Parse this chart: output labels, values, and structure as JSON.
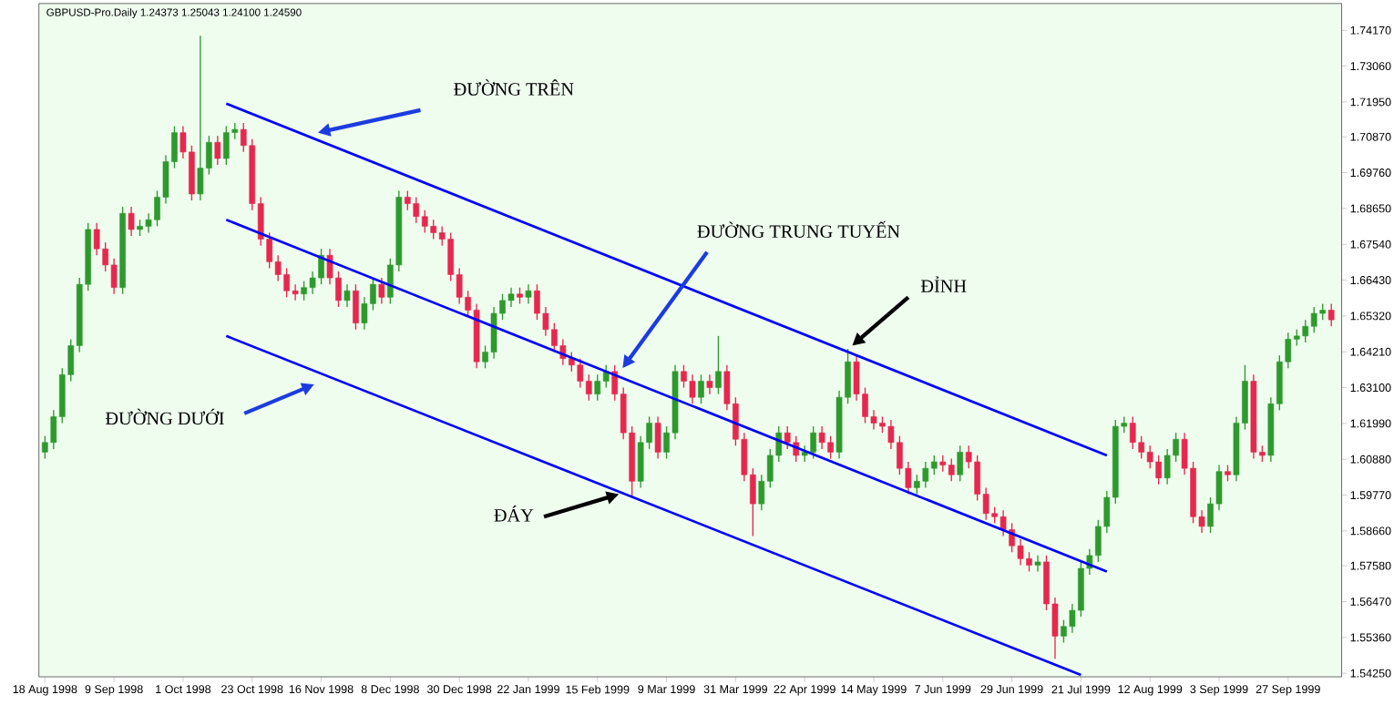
{
  "chart_data": {
    "type": "candlestick",
    "title": "GBPUSD-Pro.Daily  1.24373 1.25043 1.24100 1.24590",
    "categories": [
      "18 Aug 1998",
      null,
      null,
      null,
      null,
      null,
      null,
      null,
      "9 Sep 1998",
      null,
      null,
      null,
      null,
      null,
      null,
      null,
      "1 Oct 1998",
      null,
      null,
      null,
      null,
      null,
      null,
      null,
      "23 Oct 1998",
      null,
      null,
      null,
      null,
      null,
      null,
      null,
      "16 Nov 1998",
      null,
      null,
      null,
      null,
      null,
      null,
      null,
      "8 Dec 1998",
      null,
      null,
      null,
      null,
      null,
      null,
      null,
      "30 Dec 1998",
      null,
      null,
      null,
      null,
      null,
      null,
      null,
      "22 Jan 1999",
      null,
      null,
      null,
      null,
      null,
      null,
      null,
      "15 Feb 1999",
      null,
      null,
      null,
      null,
      null,
      null,
      null,
      "9 Mar 1999",
      null,
      null,
      null,
      null,
      null,
      null,
      null,
      "31 Mar 1999",
      null,
      null,
      null,
      null,
      null,
      null,
      null,
      "22 Apr 1999",
      null,
      null,
      null,
      null,
      null,
      null,
      null,
      "14 May 1999",
      null,
      null,
      null,
      null,
      null,
      null,
      null,
      "7 Jun 1999",
      null,
      null,
      null,
      null,
      null,
      null,
      null,
      "29 Jun 1999",
      null,
      null,
      null,
      null,
      null,
      null,
      null,
      "21 Jul 1999",
      null,
      null,
      null,
      null,
      null,
      null,
      null,
      "12 Aug 1999",
      null,
      null,
      null,
      null,
      null,
      null,
      null,
      "3 Sep 1999",
      null,
      null,
      null,
      null,
      null,
      null,
      null,
      "27 Sep 1999",
      null,
      null,
      null,
      null,
      null
    ],
    "ohlc": [
      [
        1.611,
        1.616,
        1.609,
        1.614
      ],
      [
        1.614,
        1.624,
        1.612,
        1.622
      ],
      [
        1.622,
        1.637,
        1.62,
        1.635
      ],
      [
        1.635,
        1.646,
        1.633,
        1.644
      ],
      [
        1.644,
        1.665,
        1.642,
        1.663
      ],
      [
        1.663,
        1.682,
        1.661,
        1.68
      ],
      [
        1.68,
        1.682,
        1.672,
        1.674
      ],
      [
        1.674,
        1.676,
        1.667,
        1.669
      ],
      [
        1.669,
        1.671,
        1.66,
        1.662
      ],
      [
        1.662,
        1.687,
        1.66,
        1.685
      ],
      [
        1.685,
        1.687,
        1.678,
        1.68
      ],
      [
        1.68,
        1.683,
        1.678,
        1.681
      ],
      [
        1.681,
        1.685,
        1.679,
        1.683
      ],
      [
        1.683,
        1.692,
        1.681,
        1.69
      ],
      [
        1.69,
        1.703,
        1.688,
        1.701
      ],
      [
        1.701,
        1.712,
        1.699,
        1.71
      ],
      [
        1.71,
        1.712,
        1.702,
        1.704
      ],
      [
        1.704,
        1.706,
        1.689,
        1.691
      ],
      [
        1.691,
        1.74,
        1.689,
        1.699
      ],
      [
        1.699,
        1.709,
        1.697,
        1.707
      ],
      [
        1.707,
        1.709,
        1.7,
        1.702
      ],
      [
        1.702,
        1.712,
        1.7,
        1.71
      ],
      [
        1.71,
        1.713,
        1.708,
        1.711
      ],
      [
        1.711,
        1.713,
        1.704,
        1.706
      ],
      [
        1.706,
        1.708,
        1.686,
        1.688
      ],
      [
        1.688,
        1.69,
        1.675,
        1.677
      ],
      [
        1.677,
        1.679,
        1.668,
        1.67
      ],
      [
        1.67,
        1.672,
        1.664,
        1.666
      ],
      [
        1.666,
        1.668,
        1.659,
        1.661
      ],
      [
        1.661,
        1.663,
        1.658,
        1.66
      ],
      [
        1.66,
        1.664,
        1.658,
        1.662
      ],
      [
        1.662,
        1.667,
        1.66,
        1.665
      ],
      [
        1.665,
        1.674,
        1.663,
        1.672
      ],
      [
        1.672,
        1.674,
        1.663,
        1.665
      ],
      [
        1.665,
        1.667,
        1.656,
        1.658
      ],
      [
        1.658,
        1.663,
        1.656,
        1.661
      ],
      [
        1.661,
        1.663,
        1.649,
        1.651
      ],
      [
        1.651,
        1.659,
        1.649,
        1.657
      ],
      [
        1.657,
        1.665,
        1.655,
        1.663
      ],
      [
        1.663,
        1.665,
        1.657,
        1.659
      ],
      [
        1.659,
        1.671,
        1.657,
        1.669
      ],
      [
        1.669,
        1.692,
        1.667,
        1.69
      ],
      [
        1.69,
        1.692,
        1.686,
        1.688
      ],
      [
        1.688,
        1.69,
        1.682,
        1.684
      ],
      [
        1.684,
        1.686,
        1.679,
        1.681
      ],
      [
        1.681,
        1.683,
        1.677,
        1.679
      ],
      [
        1.679,
        1.681,
        1.675,
        1.677
      ],
      [
        1.677,
        1.679,
        1.664,
        1.666
      ],
      [
        1.666,
        1.668,
        1.657,
        1.659
      ],
      [
        1.659,
        1.661,
        1.653,
        1.655
      ],
      [
        1.655,
        1.657,
        1.637,
        1.639
      ],
      [
        1.639,
        1.644,
        1.637,
        1.642
      ],
      [
        1.642,
        1.656,
        1.64,
        1.654
      ],
      [
        1.654,
        1.66,
        1.652,
        1.658
      ],
      [
        1.658,
        1.662,
        1.656,
        1.66
      ],
      [
        1.66,
        1.662,
        1.657,
        1.659
      ],
      [
        1.659,
        1.663,
        1.657,
        1.661
      ],
      [
        1.661,
        1.663,
        1.652,
        1.654
      ],
      [
        1.654,
        1.656,
        1.647,
        1.649
      ],
      [
        1.649,
        1.651,
        1.642,
        1.644
      ],
      [
        1.644,
        1.646,
        1.638,
        1.64
      ],
      [
        1.64,
        1.642,
        1.636,
        1.638
      ],
      [
        1.638,
        1.64,
        1.631,
        1.633
      ],
      [
        1.633,
        1.635,
        1.627,
        1.629
      ],
      [
        1.629,
        1.635,
        1.627,
        1.633
      ],
      [
        1.633,
        1.638,
        1.631,
        1.636
      ],
      [
        1.636,
        1.638,
        1.627,
        1.629
      ],
      [
        1.629,
        1.631,
        1.615,
        1.617
      ],
      [
        1.617,
        1.619,
        1.597,
        1.602
      ],
      [
        1.602,
        1.616,
        1.6,
        1.614
      ],
      [
        1.614,
        1.622,
        1.612,
        1.62
      ],
      [
        1.62,
        1.622,
        1.609,
        1.611
      ],
      [
        1.611,
        1.619,
        1.609,
        1.617
      ],
      [
        1.617,
        1.638,
        1.615,
        1.636
      ],
      [
        1.636,
        1.638,
        1.631,
        1.633
      ],
      [
        1.633,
        1.635,
        1.626,
        1.628
      ],
      [
        1.628,
        1.635,
        1.626,
        1.633
      ],
      [
        1.633,
        1.635,
        1.629,
        1.631
      ],
      [
        1.631,
        1.647,
        1.629,
        1.636
      ],
      [
        1.636,
        1.638,
        1.624,
        1.626
      ],
      [
        1.626,
        1.628,
        1.613,
        1.615
      ],
      [
        1.615,
        1.617,
        1.602,
        1.604
      ],
      [
        1.604,
        1.606,
        1.585,
        1.595
      ],
      [
        1.595,
        1.604,
        1.593,
        1.602
      ],
      [
        1.602,
        1.612,
        1.6,
        1.61
      ],
      [
        1.61,
        1.619,
        1.608,
        1.617
      ],
      [
        1.617,
        1.619,
        1.612,
        1.614
      ],
      [
        1.614,
        1.616,
        1.608,
        1.61
      ],
      [
        1.61,
        1.613,
        1.608,
        1.611
      ],
      [
        1.611,
        1.619,
        1.609,
        1.617
      ],
      [
        1.617,
        1.619,
        1.612,
        1.614
      ],
      [
        1.614,
        1.616,
        1.609,
        1.611
      ],
      [
        1.611,
        1.63,
        1.609,
        1.628
      ],
      [
        1.628,
        1.643,
        1.626,
        1.639
      ],
      [
        1.639,
        1.641,
        1.627,
        1.629
      ],
      [
        1.629,
        1.631,
        1.62,
        1.622
      ],
      [
        1.622,
        1.624,
        1.618,
        1.62
      ],
      [
        1.62,
        1.622,
        1.617,
        1.619
      ],
      [
        1.619,
        1.621,
        1.612,
        1.614
      ],
      [
        1.614,
        1.616,
        1.604,
        1.606
      ],
      [
        1.606,
        1.608,
        1.598,
        1.6
      ],
      [
        1.6,
        1.604,
        1.598,
        1.602
      ],
      [
        1.602,
        1.608,
        1.6,
        1.606
      ],
      [
        1.606,
        1.61,
        1.604,
        1.608
      ],
      [
        1.608,
        1.61,
        1.605,
        1.607
      ],
      [
        1.607,
        1.609,
        1.602,
        1.604
      ],
      [
        1.604,
        1.613,
        1.602,
        1.611
      ],
      [
        1.611,
        1.613,
        1.606,
        1.608
      ],
      [
        1.608,
        1.61,
        1.596,
        1.598
      ],
      [
        1.598,
        1.6,
        1.59,
        1.592
      ],
      [
        1.592,
        1.594,
        1.589,
        1.591
      ],
      [
        1.591,
        1.593,
        1.585,
        1.587
      ],
      [
        1.587,
        1.589,
        1.58,
        1.582
      ],
      [
        1.582,
        1.584,
        1.576,
        1.578
      ],
      [
        1.578,
        1.58,
        1.574,
        1.576
      ],
      [
        1.576,
        1.579,
        1.574,
        1.577
      ],
      [
        1.577,
        1.579,
        1.562,
        1.564
      ],
      [
        1.564,
        1.566,
        1.547,
        1.554
      ],
      [
        1.554,
        1.559,
        1.552,
        1.557
      ],
      [
        1.557,
        1.564,
        1.555,
        1.562
      ],
      [
        1.562,
        1.577,
        1.56,
        1.575
      ],
      [
        1.575,
        1.581,
        1.573,
        1.579
      ],
      [
        1.579,
        1.59,
        1.577,
        1.588
      ],
      [
        1.588,
        1.599,
        1.586,
        1.597
      ],
      [
        1.597,
        1.621,
        1.595,
        1.619
      ],
      [
        1.619,
        1.622,
        1.617,
        1.62
      ],
      [
        1.62,
        1.622,
        1.612,
        1.614
      ],
      [
        1.614,
        1.616,
        1.609,
        1.611
      ],
      [
        1.611,
        1.613,
        1.606,
        1.608
      ],
      [
        1.608,
        1.61,
        1.601,
        1.603
      ],
      [
        1.603,
        1.612,
        1.601,
        1.61
      ],
      [
        1.61,
        1.617,
        1.608,
        1.615
      ],
      [
        1.615,
        1.617,
        1.604,
        1.606
      ],
      [
        1.606,
        1.608,
        1.589,
        1.591
      ],
      [
        1.591,
        1.593,
        1.586,
        1.588
      ],
      [
        1.588,
        1.597,
        1.586,
        1.595
      ],
      [
        1.595,
        1.607,
        1.593,
        1.605
      ],
      [
        1.605,
        1.607,
        1.602,
        1.604
      ],
      [
        1.604,
        1.622,
        1.602,
        1.62
      ],
      [
        1.62,
        1.638,
        1.618,
        1.633
      ],
      [
        1.633,
        1.635,
        1.609,
        1.611
      ],
      [
        1.611,
        1.613,
        1.608,
        1.61
      ],
      [
        1.61,
        1.628,
        1.608,
        1.626
      ],
      [
        1.626,
        1.641,
        1.624,
        1.639
      ],
      [
        1.639,
        1.648,
        1.637,
        1.646
      ],
      [
        1.646,
        1.649,
        1.644,
        1.647
      ],
      [
        1.647,
        1.652,
        1.645,
        1.65
      ],
      [
        1.65,
        1.656,
        1.648,
        1.654
      ],
      [
        1.654,
        1.657,
        1.652,
        1.655
      ],
      [
        1.655,
        1.657,
        1.65,
        1.652
      ]
    ],
    "series": [
      {
        "type": "line",
        "color": "#0000ff",
        "values": [
          null,
          null,
          null,
          null,
          null,
          null,
          null,
          null,
          null,
          null,
          null,
          null,
          null,
          null,
          null,
          null,
          null,
          null,
          null,
          null,
          null,
          1.719,
          null,
          null,
          null,
          null,
          null,
          null,
          null,
          null,
          null,
          null,
          null,
          null,
          null,
          null,
          null,
          null,
          null,
          null,
          null,
          null,
          null,
          null,
          null,
          null,
          null,
          null,
          null,
          null,
          null,
          null,
          null,
          null,
          null,
          null,
          null,
          null,
          null,
          null,
          null,
          null,
          null,
          null,
          null,
          null,
          null,
          null,
          null,
          null,
          null,
          null,
          null,
          null,
          null,
          null,
          null,
          null,
          null,
          null,
          null,
          null,
          null,
          null,
          null,
          null,
          null,
          null,
          null,
          null,
          null,
          null,
          null,
          null,
          null,
          null,
          null,
          null,
          null,
          null,
          null,
          null,
          null,
          null,
          null,
          null,
          null,
          null,
          null,
          null,
          null,
          null,
          null,
          null,
          null,
          null,
          null,
          null,
          null,
          null,
          null,
          null,
          null,
          1.61,
          null,
          null,
          null,
          null,
          null,
          null,
          null,
          null,
          null,
          null,
          null,
          null,
          null,
          null,
          null,
          null,
          null,
          null,
          null,
          null,
          null,
          null,
          null,
          null,
          null,
          null
        ]
      },
      {
        "type": "line",
        "color": "#0000ff",
        "values": [
          null,
          null,
          null,
          null,
          null,
          null,
          null,
          null,
          null,
          null,
          null,
          null,
          null,
          null,
          null,
          null,
          null,
          null,
          null,
          null,
          null,
          1.683,
          null,
          null,
          null,
          null,
          null,
          null,
          null,
          null,
          null,
          null,
          null,
          null,
          null,
          null,
          null,
          null,
          null,
          null,
          null,
          null,
          null,
          null,
          null,
          null,
          null,
          null,
          null,
          null,
          null,
          null,
          null,
          null,
          null,
          null,
          null,
          null,
          null,
          null,
          null,
          null,
          null,
          null,
          null,
          null,
          null,
          null,
          null,
          null,
          null,
          null,
          null,
          null,
          null,
          null,
          null,
          null,
          null,
          null,
          null,
          null,
          null,
          null,
          null,
          null,
          null,
          null,
          null,
          null,
          null,
          null,
          null,
          null,
          null,
          null,
          null,
          null,
          null,
          null,
          null,
          null,
          null,
          null,
          null,
          null,
          null,
          null,
          null,
          null,
          null,
          null,
          null,
          null,
          null,
          null,
          null,
          null,
          null,
          null,
          null,
          null,
          null,
          1.574,
          null,
          null,
          null,
          null,
          null,
          null,
          null,
          null,
          null,
          null,
          null,
          null,
          null,
          null,
          null,
          null,
          null,
          null,
          null,
          null,
          null,
          null,
          null,
          null,
          null,
          null
        ]
      },
      {
        "type": "line",
        "color": "#0000ff",
        "values": [
          null,
          null,
          null,
          null,
          null,
          null,
          null,
          null,
          null,
          null,
          null,
          null,
          null,
          null,
          null,
          null,
          null,
          null,
          null,
          null,
          null,
          1.647,
          null,
          null,
          null,
          null,
          null,
          null,
          null,
          null,
          null,
          null,
          null,
          null,
          null,
          null,
          null,
          null,
          null,
          null,
          null,
          null,
          null,
          null,
          null,
          null,
          null,
          null,
          null,
          null,
          null,
          null,
          null,
          null,
          null,
          null,
          null,
          null,
          null,
          null,
          null,
          null,
          null,
          null,
          null,
          null,
          null,
          null,
          null,
          null,
          null,
          null,
          null,
          null,
          null,
          null,
          null,
          null,
          null,
          null,
          null,
          null,
          null,
          null,
          null,
          null,
          null,
          null,
          null,
          null,
          null,
          null,
          null,
          null,
          null,
          null,
          null,
          null,
          null,
          null,
          null,
          null,
          null,
          null,
          null,
          null,
          null,
          null,
          null,
          null,
          null,
          null,
          null,
          null,
          null,
          null,
          null,
          null,
          null,
          null,
          1.542,
          null,
          null,
          null,
          null,
          null,
          null,
          null,
          null,
          null,
          null,
          null,
          null,
          null,
          null,
          null,
          null,
          null,
          null,
          null,
          null,
          null,
          null,
          null,
          null,
          null,
          null,
          null,
          null,
          null
        ]
      }
    ],
    "ylim": [
      1.5414,
      1.75
    ],
    "yticks": [
      {
        "value": 1.7417,
        "label": "1.74170"
      },
      {
        "value": 1.7306,
        "label": "1.73060"
      },
      {
        "value": 1.7195,
        "label": "1.71950"
      },
      {
        "value": 1.7087,
        "label": "1.70870"
      },
      {
        "value": 1.6976,
        "label": "1.69760"
      },
      {
        "value": 1.6865,
        "label": "1.68650"
      },
      {
        "value": 1.6754,
        "label": "1.67540"
      },
      {
        "value": 1.6643,
        "label": "1.66430"
      },
      {
        "value": 1.6532,
        "label": "1.65320"
      },
      {
        "value": 1.6421,
        "label": "1.64210"
      },
      {
        "value": 1.631,
        "label": "1.63100"
      },
      {
        "value": 1.6199,
        "label": "1.61990"
      },
      {
        "value": 1.6088,
        "label": "1.60880"
      },
      {
        "value": 1.5977,
        "label": "1.59770"
      },
      {
        "value": 1.5866,
        "label": "1.58660"
      },
      {
        "value": 1.5758,
        "label": "1.57580"
      },
      {
        "value": 1.5647,
        "label": "1.56470"
      },
      {
        "value": 1.5536,
        "label": "1.55360"
      },
      {
        "value": 1.5425,
        "label": "1.54250"
      }
    ],
    "annotations": [
      "ĐƯỜNG TRÊN",
      "ĐƯỜNG TRUNG TUYẾN",
      "ĐỈNH",
      "ĐƯỜNG DƯỚI",
      "ĐÁY"
    ]
  }
}
